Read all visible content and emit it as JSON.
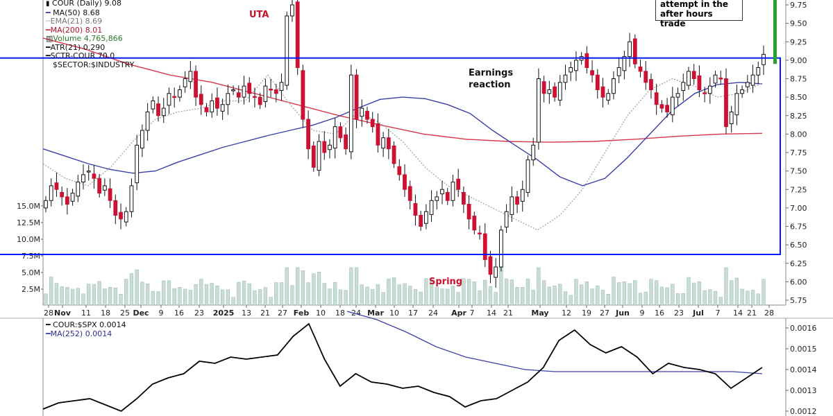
{
  "legend_price": {
    "title": "COUR (Daily) 9.08",
    "ma50": "MA(50) 8.68",
    "ema21": "EMA(21) 8.69",
    "ma200": "MA(200) 8.01",
    "volume": "Volume 4,765,866",
    "atr": "ATR(21) 0.290",
    "sctr": "SCTR-COUR 70.0",
    "sector": "$SECTOR:$INDUSTRY"
  },
  "legend_ratio": {
    "title": "COUR:$SPX 0.0014",
    "ma252": "MA(252) 0.0014"
  },
  "annotations": {
    "uta": "UTA",
    "earnings_line1": "Earnings",
    "earnings_line2": "reaction",
    "spring": "Spring",
    "box_line1": "attempt in the",
    "box_line2": "after hours trade"
  },
  "colors": {
    "up": "#ffffff",
    "down": "#cc1133",
    "ma50": "#3a3fa8",
    "ma200": "#d8364a",
    "ema21": "#aaaaaa",
    "range_box": "#0018ff",
    "volume": "#c8ddd3",
    "after_hours": "#2aa12a",
    "ratio_line": "#000000",
    "ratio_ma": "#3a3fa8"
  },
  "chart_data": [
    {
      "type": "candlestick",
      "title": "COUR (Daily) 9.08",
      "ylim": [
        5.7,
        9.8
      ],
      "yticks": [
        "9.75",
        "9.50",
        "9.25",
        "9.00",
        "8.75",
        "8.50",
        "8.25",
        "8.00",
        "7.75",
        "7.50",
        "7.25",
        "7.00",
        "6.75",
        "6.50",
        "6.25",
        "6.00",
        "5.75"
      ],
      "xticks": [
        "28",
        "Nov",
        "11",
        "18",
        "25",
        "Dec",
        "9",
        "16",
        "23",
        "2025",
        "13",
        "21",
        "27",
        "Feb",
        "10",
        "18",
        "24",
        "Mar",
        "10",
        "17",
        "24",
        "Apr",
        "7",
        "14",
        "21",
        "May",
        "12",
        "19",
        "27",
        "Jun",
        "9",
        "16",
        "23",
        "Jul",
        "7",
        "14",
        "21",
        "28"
      ],
      "close_series": [
        7.1,
        7.3,
        7.25,
        7.15,
        7.05,
        7.2,
        7.35,
        7.45,
        7.5,
        7.4,
        7.2,
        7.3,
        7.1,
        6.9,
        6.85,
        6.95,
        7.3,
        7.85,
        8.05,
        8.3,
        8.45,
        8.25,
        8.35,
        8.55,
        8.5,
        8.6,
        8.75,
        8.85,
        8.5,
        8.4,
        8.3,
        8.45,
        8.35,
        8.4,
        8.55,
        8.6,
        8.5,
        8.65,
        8.55,
        8.5,
        8.4,
        8.65,
        8.6,
        8.55,
        8.7,
        9.6,
        9.75,
        8.9,
        8.2,
        7.8,
        7.55,
        7.9,
        7.75,
        7.85,
        8.1,
        7.95,
        7.8,
        8.8,
        8.2,
        8.35,
        8.2,
        8.1,
        7.85,
        7.95,
        7.8,
        7.6,
        7.45,
        7.25,
        7.1,
        6.9,
        6.75,
        6.95,
        7.1,
        7.15,
        7.25,
        7.1,
        7.35,
        7.25,
        7.05,
        6.85,
        6.7,
        6.65,
        6.3,
        6.1,
        6.2,
        6.7,
        6.95,
        7.15,
        7.05,
        7.25,
        7.65,
        7.85,
        8.75,
        8.55,
        8.6,
        8.5,
        8.7,
        8.8,
        8.9,
        9.0,
        9.05,
        8.9,
        8.8,
        8.6,
        8.5,
        8.55,
        8.75,
        8.9,
        9.05,
        9.25,
        8.95,
        8.85,
        8.7,
        8.6,
        8.4,
        8.35,
        8.3,
        8.5,
        8.55,
        8.7,
        8.85,
        8.75,
        8.6,
        8.55,
        8.65,
        8.8,
        8.75,
        8.1,
        8.3,
        8.55,
        8.6,
        8.7,
        8.8,
        8.9,
        9.08
      ],
      "ma50": [
        7.8,
        7.7,
        7.6,
        7.52,
        7.47,
        7.5,
        7.62,
        7.72,
        7.82,
        7.9,
        7.98,
        8.05,
        8.12,
        8.22,
        8.35,
        8.47,
        8.5,
        8.48,
        8.4,
        8.28,
        8.05,
        7.85,
        7.65,
        7.42,
        7.3,
        7.4,
        7.68,
        8.0,
        8.32,
        8.55,
        8.67,
        8.7,
        8.68
      ],
      "ema21": [
        7.6,
        7.4,
        7.3,
        7.55,
        7.9,
        8.2,
        8.3,
        8.35,
        8.45,
        8.45,
        8.8,
        8.4,
        8.05,
        8.0,
        8.3,
        8.15,
        7.9,
        7.55,
        7.3,
        7.15,
        7.0,
        6.85,
        6.7,
        6.9,
        7.25,
        7.75,
        8.25,
        8.6,
        8.75,
        8.65,
        8.5,
        8.55,
        8.69
      ],
      "ma200": [
        9.3,
        9.15,
        8.95,
        8.8,
        8.7,
        8.55,
        8.4,
        8.25,
        8.12,
        8.0,
        7.93,
        7.9,
        7.89,
        7.9,
        7.93,
        7.97,
        8.0,
        8.01
      ],
      "range_box": [
        6.37,
        9.03
      ],
      "volume_yticks": [
        "15.0M",
        "12.5M",
        "10.0M",
        "7.5M",
        "5.0M",
        "2.5M"
      ],
      "latest_volume": 4765866
    },
    {
      "type": "line",
      "title": "COUR:$SPX 0.0014",
      "yticks": [
        "0.0016",
        "0.0015",
        "0.0014",
        "0.0013",
        "0.0012"
      ],
      "series": [
        {
          "name": "COUR:$SPX",
          "values": [
            0.00121,
            0.00124,
            0.00125,
            0.00126,
            0.00123,
            0.0012,
            0.00126,
            0.00133,
            0.00136,
            0.00138,
            0.00144,
            0.00143,
            0.00146,
            0.00145,
            0.00146,
            0.00147,
            0.00156,
            0.00162,
            0.00145,
            0.00132,
            0.00138,
            0.00134,
            0.00133,
            0.00131,
            0.00132,
            0.00129,
            0.00127,
            0.00122,
            0.00125,
            0.00126,
            0.0013,
            0.00134,
            0.00141,
            0.00154,
            0.00159,
            0.00152,
            0.00148,
            0.00151,
            0.00146,
            0.00138,
            0.00143,
            0.00141,
            0.0014,
            0.00138,
            0.00131,
            0.00136,
            0.00141
          ]
        },
        {
          "name": "MA(252)",
          "values": [
            0.00168,
            0.00164,
            0.00158,
            0.00151,
            0.00146,
            0.00143,
            0.0014,
            0.00139,
            0.00139,
            0.00139,
            0.00139,
            0.00139,
            0.00139,
            0.00139,
            0.00138
          ]
        }
      ]
    }
  ]
}
